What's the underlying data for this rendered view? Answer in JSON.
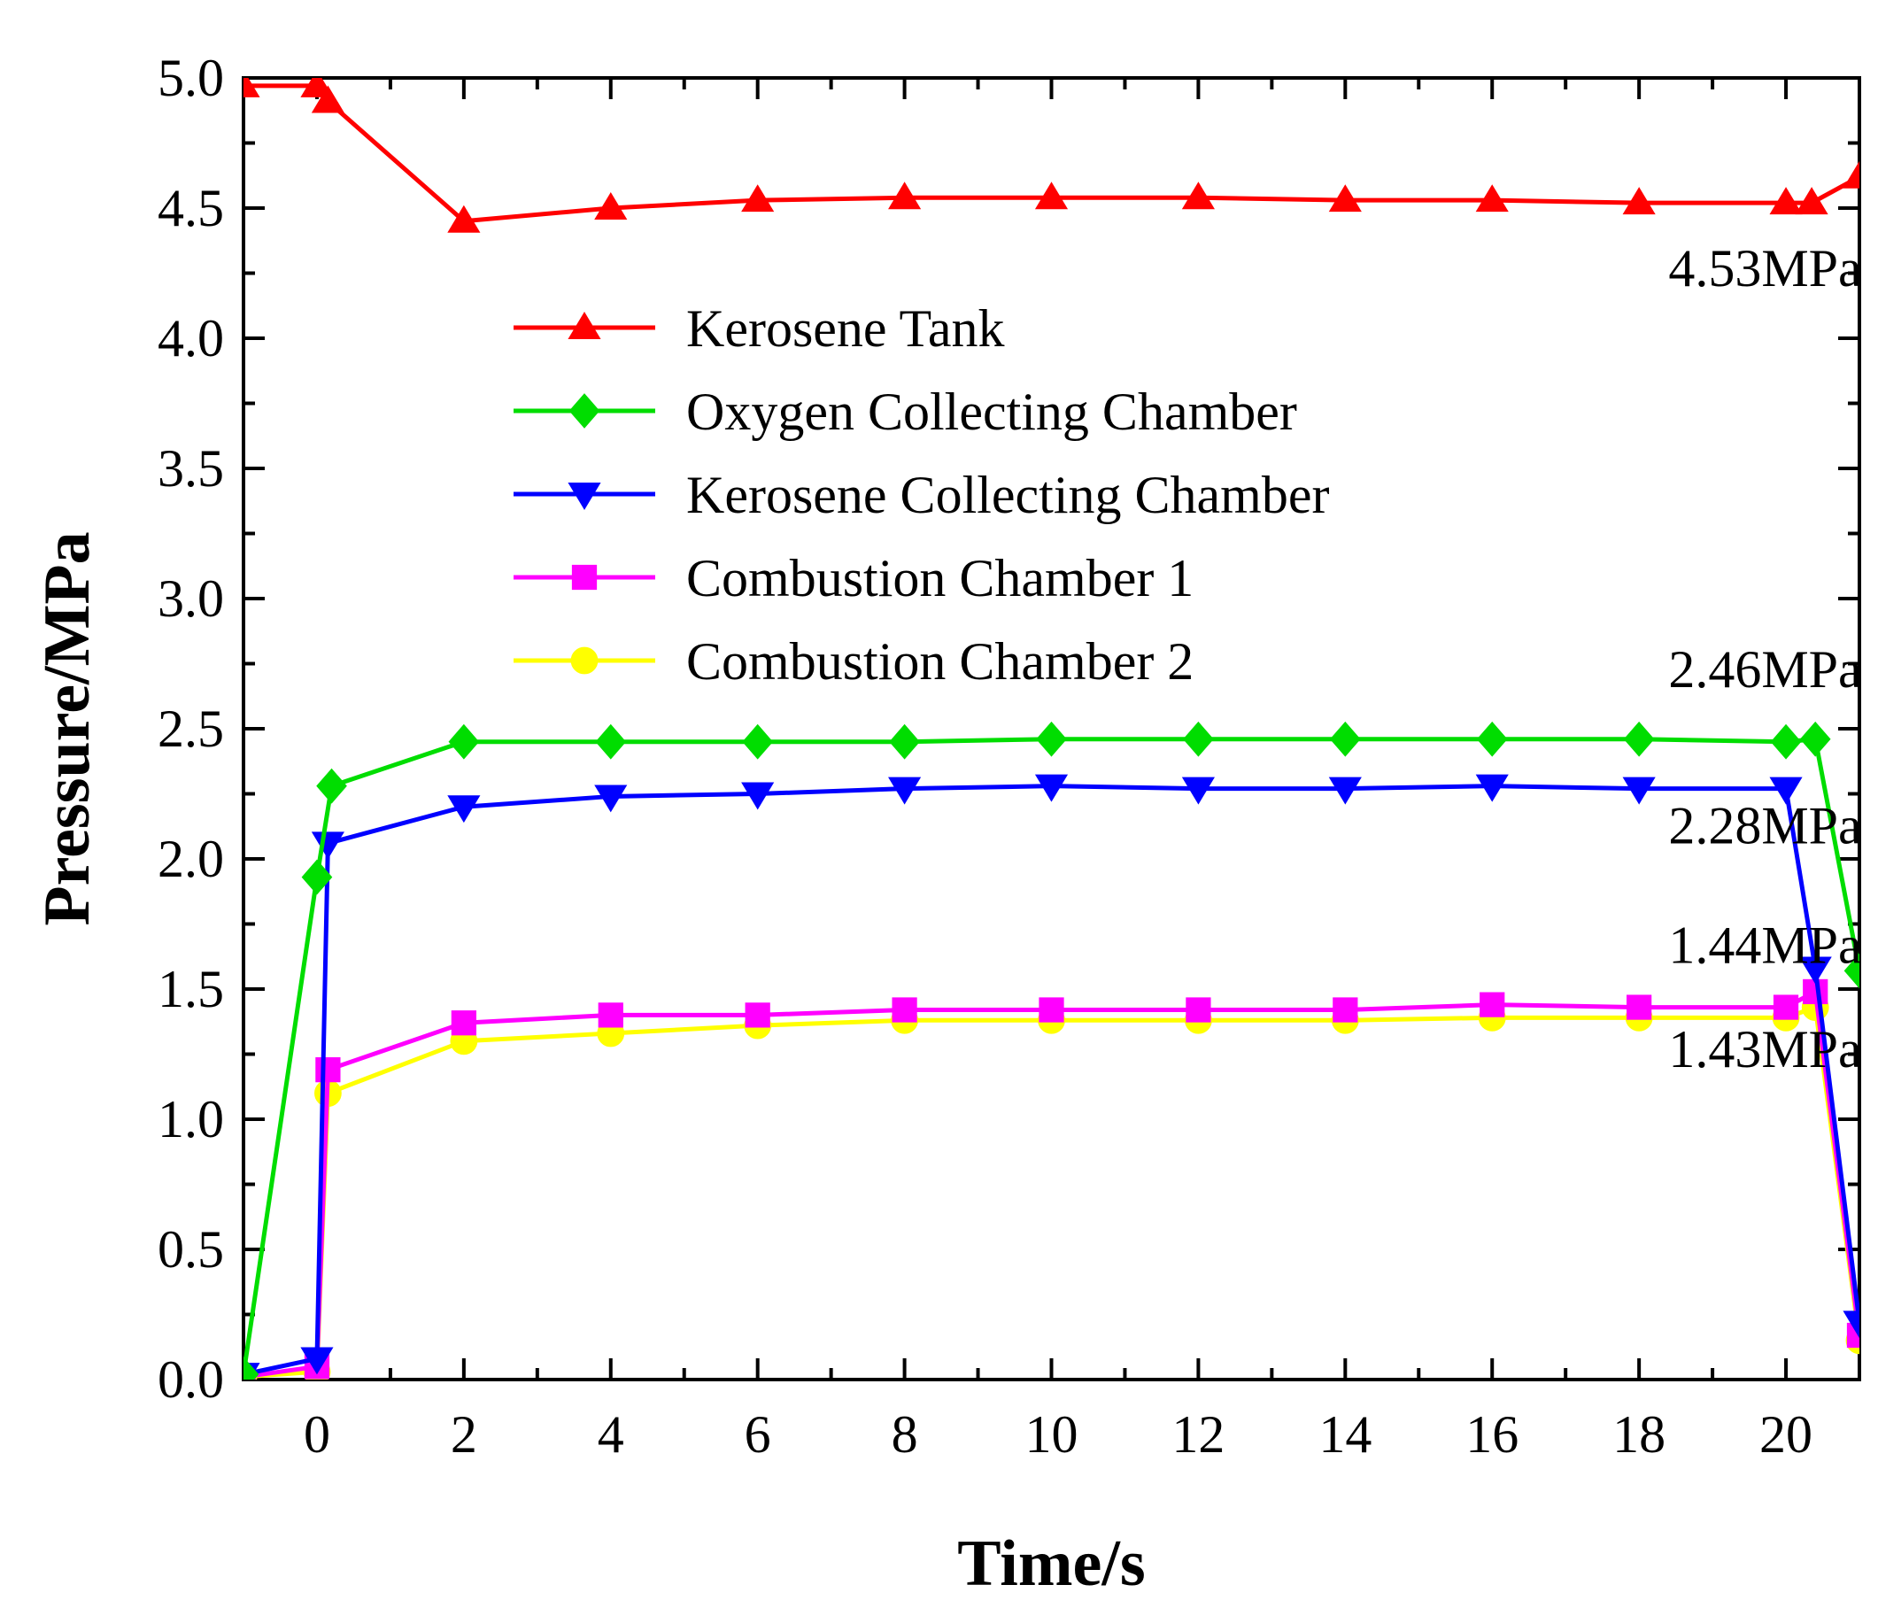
{
  "chart_data": {
    "type": "line",
    "title": "",
    "xlabel": "Time/s",
    "ylabel": "Pressure/MPa",
    "xlim": [
      -1,
      21
    ],
    "ylim": [
      0,
      5
    ],
    "xticks": [
      0,
      2,
      4,
      6,
      8,
      10,
      12,
      14,
      16,
      18,
      20
    ],
    "xtick_labels": [
      "0",
      "2",
      "4",
      "6",
      "8",
      "10",
      "12",
      "14",
      "16",
      "18",
      "20"
    ],
    "yticks": [
      0,
      0.5,
      1,
      1.5,
      2,
      2.5,
      3,
      3.5,
      4,
      4.5,
      5
    ],
    "ytick_labels": [
      "0.0",
      "0.5",
      "1.0",
      "1.5",
      "2.0",
      "2.5",
      "3.0",
      "3.5",
      "4.0",
      "4.5",
      "5.0"
    ],
    "legend_position": "center-left",
    "grid": false,
    "series": [
      {
        "name": "Kerosene Tank",
        "color": "#ff0000",
        "marker": "triangle-up",
        "x": [
          -1,
          0,
          0.15,
          2,
          4,
          6,
          8,
          10,
          12,
          14,
          16,
          18,
          20,
          20.35,
          21
        ],
        "y": [
          4.97,
          4.97,
          4.91,
          4.45,
          4.5,
          4.53,
          4.54,
          4.54,
          4.54,
          4.53,
          4.53,
          4.52,
          4.52,
          4.52,
          4.62
        ]
      },
      {
        "name": "Oxygen Collecting Chamber",
        "color": "#00dd00",
        "marker": "diamond",
        "x": [
          -1,
          0,
          0.2,
          2,
          4,
          6,
          8,
          10,
          12,
          14,
          16,
          18,
          20,
          20.4,
          21
        ],
        "y": [
          0.02,
          1.93,
          2.28,
          2.45,
          2.45,
          2.45,
          2.45,
          2.46,
          2.46,
          2.46,
          2.46,
          2.46,
          2.45,
          2.46,
          1.57
        ]
      },
      {
        "name": "Kerosene Collecting Chamber",
        "color": "#0000ff",
        "marker": "triangle-down",
        "x": [
          -1,
          0,
          0.15,
          2,
          4,
          6,
          8,
          10,
          12,
          14,
          16,
          18,
          20,
          20.4,
          21
        ],
        "y": [
          0.02,
          0.08,
          2.06,
          2.2,
          2.24,
          2.25,
          2.27,
          2.28,
          2.27,
          2.27,
          2.28,
          2.27,
          2.27,
          1.58,
          0.22
        ]
      },
      {
        "name": "Combustion Chamber 1",
        "color": "#ff00ff",
        "marker": "square",
        "x": [
          -1,
          0,
          0.15,
          2,
          4,
          6,
          8,
          10,
          12,
          14,
          16,
          18,
          20,
          20.4,
          21
        ],
        "y": [
          0.01,
          0.05,
          1.19,
          1.37,
          1.4,
          1.4,
          1.42,
          1.42,
          1.42,
          1.42,
          1.44,
          1.43,
          1.43,
          1.49,
          0.17
        ]
      },
      {
        "name": "Combustion Chamber 2",
        "color": "#ffff00",
        "marker": "circle",
        "x": [
          -1,
          0,
          0.15,
          2,
          4,
          6,
          8,
          10,
          12,
          14,
          16,
          18,
          20,
          20.4,
          21
        ],
        "y": [
          0.01,
          0.03,
          1.1,
          1.3,
          1.33,
          1.36,
          1.38,
          1.38,
          1.38,
          1.38,
          1.39,
          1.39,
          1.39,
          1.43,
          0.15
        ]
      }
    ],
    "annotations": [
      {
        "text": "4.53MPa",
        "x": 18.4,
        "y": 4.2
      },
      {
        "text": "2.46MPa",
        "x": 18.4,
        "y": 2.66
      },
      {
        "text": "2.28MPa",
        "x": 18.4,
        "y": 2.06
      },
      {
        "text": "1.44MPa",
        "x": 18.4,
        "y": 1.6
      },
      {
        "text": "1.43MPa",
        "x": 18.4,
        "y": 1.2
      }
    ]
  }
}
